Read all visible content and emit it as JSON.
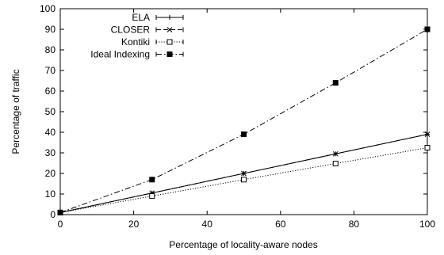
{
  "chart_data": {
    "type": "line",
    "title": "",
    "xlabel": "Percentage of locality-aware nodes",
    "ylabel": "Percentage of traffic",
    "xlim": [
      0,
      100
    ],
    "ylim": [
      0,
      100
    ],
    "xticks": [
      0,
      20,
      40,
      60,
      80,
      100
    ],
    "yticks": [
      0,
      10,
      20,
      30,
      40,
      50,
      60,
      70,
      80,
      90,
      100
    ],
    "grid": false,
    "legend_position": "top-left",
    "x": [
      0,
      25,
      50,
      75,
      100
    ],
    "series": [
      {
        "name": "ELA",
        "values": [
          1,
          10.5,
          20,
          29.5,
          39
        ],
        "marker": "plus",
        "dash": "solid",
        "marker_fill": "none"
      },
      {
        "name": "CLOSER",
        "values": [
          1,
          10.5,
          20,
          29.5,
          39
        ],
        "marker": "cross",
        "dash": "dashed",
        "marker_fill": "none"
      },
      {
        "name": "Kontiki",
        "values": [
          1,
          9,
          17,
          24.8,
          32.5
        ],
        "marker": "square-open",
        "dash": "dotted",
        "marker_fill": "none"
      },
      {
        "name": "Ideal Indexing",
        "values": [
          1,
          17,
          39,
          64,
          90
        ],
        "marker": "square-filled",
        "dash": "dashdot",
        "marker_fill": "#000000"
      }
    ],
    "colors": {
      "line": "#000000",
      "axis": "#000000",
      "background": "#ffffff"
    }
  }
}
